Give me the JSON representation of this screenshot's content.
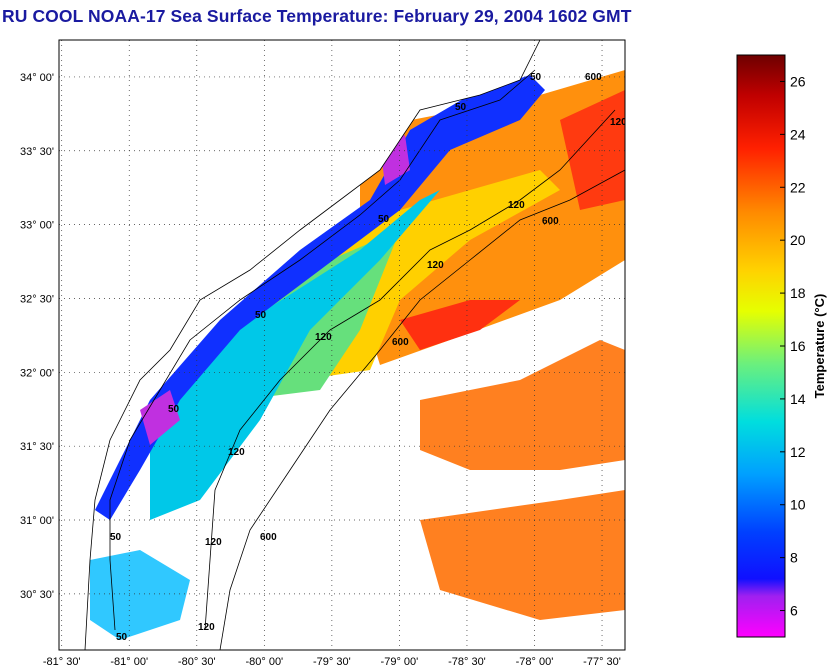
{
  "title": "RU COOL  NOAA-17  Sea Surface Temperature:  February 29, 2004 1602 GMT",
  "map": {
    "lat_ticks": [
      {
        "value": 34.0,
        "deg": "34",
        "min": "00'"
      },
      {
        "value": 33.5,
        "deg": "33",
        "min": "30'"
      },
      {
        "value": 33.0,
        "deg": "33",
        "min": "00'"
      },
      {
        "value": 32.5,
        "deg": "32",
        "min": "30'"
      },
      {
        "value": 32.0,
        "deg": "32",
        "min": "00'"
      },
      {
        "value": 31.5,
        "deg": "31",
        "min": "30'"
      },
      {
        "value": 31.0,
        "deg": "31",
        "min": "00'"
      },
      {
        "value": 30.5,
        "deg": "30",
        "min": "30'"
      }
    ],
    "lon_ticks": [
      {
        "value": -81.5,
        "deg": "-81",
        "min": "30'"
      },
      {
        "value": -81.0,
        "deg": "-81",
        "min": "00'"
      },
      {
        "value": -80.5,
        "deg": "-80",
        "min": "30'"
      },
      {
        "value": -80.0,
        "deg": "-80",
        "min": "00'"
      },
      {
        "value": -79.5,
        "deg": "-79",
        "min": "30'"
      },
      {
        "value": -79.0,
        "deg": "-79",
        "min": "00'"
      },
      {
        "value": -78.5,
        "deg": "-78",
        "min": "30'"
      },
      {
        "value": -78.0,
        "deg": "-78",
        "min": "00'"
      },
      {
        "value": -77.5,
        "deg": "-77",
        "min": "30'"
      }
    ],
    "lat_range": [
      30.12,
      34.25
    ],
    "lon_range": [
      -81.52,
      -77.33
    ],
    "grid": "dotted",
    "contour_labels": [
      "50",
      "50",
      "50",
      "50",
      "50",
      "50",
      "50",
      "120",
      "120",
      "120",
      "120",
      "120",
      "120",
      "600",
      "600",
      "600",
      "600",
      "120"
    ]
  },
  "colorbar": {
    "title": "Temperature (°C)",
    "range": [
      5,
      27
    ],
    "ticks": [
      "6",
      "8",
      "10",
      "12",
      "14",
      "16",
      "18",
      "20",
      "22",
      "24",
      "26"
    ],
    "tick_values": [
      6,
      8,
      10,
      12,
      14,
      16,
      18,
      20,
      22,
      24,
      26
    ],
    "colors": [
      "#ff00ff",
      "#8a2be2",
      "#0000ff",
      "#0055ff",
      "#00a8ff",
      "#00e5e5",
      "#7fff7f",
      "#e8ff00",
      "#ffd700",
      "#ff8c00",
      "#ff2a00",
      "#b00000",
      "#700000"
    ]
  }
}
